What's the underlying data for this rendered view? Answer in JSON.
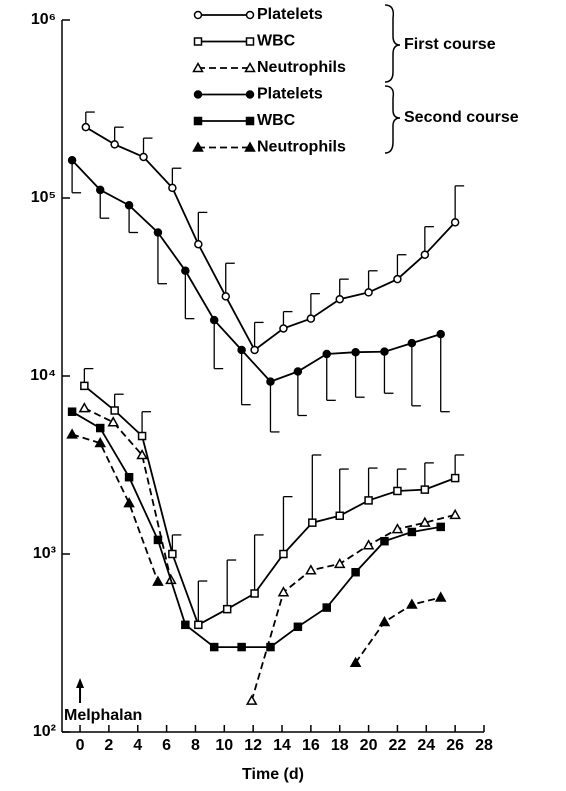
{
  "chart_data": {
    "type": "line",
    "log_y": true,
    "xlabel": "Time (d)",
    "xlim": [
      -1.25,
      28
    ],
    "xticks": [
      0,
      2,
      4,
      6,
      8,
      10,
      12,
      14,
      16,
      18,
      20,
      22,
      24,
      26,
      28
    ],
    "ylim": [
      100,
      1000000
    ],
    "yticks": [
      {
        "value": 100,
        "label": "10²"
      },
      {
        "value": 1000,
        "label": "10³"
      },
      {
        "value": 10000,
        "label": "10⁴"
      },
      {
        "value": 100000,
        "label": "10⁵"
      },
      {
        "value": 1000000,
        "label": "10⁶"
      }
    ],
    "group_labels": [
      "First course",
      "Second course"
    ],
    "annotation": {
      "text": "Melphalan",
      "x": 0
    },
    "series": [
      {
        "name": "Platelets",
        "color": "#000000",
        "marker": "circle",
        "filled": false,
        "dashed": false,
        "error_direction": "up",
        "x": [
          0.4,
          2.4,
          4.4,
          6.4,
          8.2,
          10.1,
          12.1,
          14.1,
          16,
          18,
          20,
          22,
          23.9,
          26
        ],
        "values": [
          250000,
          200000,
          170000,
          114000,
          55000,
          28000,
          14000,
          18500,
          21000,
          27000,
          29500,
          35000,
          48000,
          73000
        ],
        "errors": [
          54000,
          50000,
          47000,
          33000,
          28000,
          15000,
          6000,
          4500,
          8000,
          8000,
          9500,
          13000,
          21000,
          44000
        ]
      },
      {
        "name": "WBC",
        "color": "#000000",
        "marker": "square",
        "filled": false,
        "dashed": false,
        "error_direction": "up",
        "x": [
          0.3,
          2.4,
          4.3,
          6.4,
          8.2,
          10.2,
          12.1,
          14.1,
          16.1,
          18,
          20,
          22,
          23.9,
          26
        ],
        "values": [
          8800,
          6400,
          4600,
          1000,
          400,
          490,
          600,
          1000,
          1500,
          1640,
          2000,
          2260,
          2300,
          2670
        ],
        "errors": [
          2200,
          1500,
          1700,
          280,
          305,
          435,
          680,
          1100,
          2100,
          1360,
          1040,
          740,
          950,
          930
        ]
      },
      {
        "name": "Neutrophils",
        "color": "#000000",
        "marker": "triangle",
        "filled": false,
        "dashed": true,
        "x": [
          0.3,
          2.3,
          4.3,
          6.3,
          8.2,
          11.9,
          14.1,
          16,
          18,
          20,
          22,
          23.9,
          26
        ],
        "values": [
          6600,
          5500,
          3600,
          715,
          null,
          150,
          610,
          810,
          880,
          1120,
          1380,
          1500,
          1660
        ]
      },
      {
        "name": "Platelets",
        "color": "#000000",
        "marker": "circle",
        "filled": true,
        "dashed": false,
        "error_direction": "down",
        "x": [
          -0.55,
          1.4,
          3.4,
          5.4,
          7.3,
          9.3,
          11.2,
          13.2,
          15.1,
          17.1,
          19.1,
          21.1,
          23,
          25
        ],
        "values": [
          163000,
          111000,
          91000,
          64000,
          39000,
          20600,
          14000,
          9300,
          10600,
          13300,
          13600,
          13700,
          15300,
          17200
        ],
        "errors": [
          56000,
          34000,
          27000,
          31000,
          18000,
          9600,
          7100,
          4450,
          4600,
          6000,
          6000,
          5700,
          8500,
          10900
        ]
      },
      {
        "name": "WBC",
        "color": "#000000",
        "marker": "square",
        "filled": true,
        "dashed": false,
        "x": [
          -0.55,
          1.4,
          3.4,
          5.4,
          7.3,
          9.3,
          11.2,
          13.2,
          15.1,
          17.1,
          19.1,
          21.1,
          23,
          25
        ],
        "values": [
          6300,
          5100,
          2700,
          1200,
          400,
          300,
          300,
          300,
          390,
          500,
          790,
          1180,
          1330,
          1420
        ]
      },
      {
        "name": "Neutrophils",
        "color": "#000000",
        "marker": "triangle",
        "filled": true,
        "dashed": true,
        "x": [
          -0.55,
          1.4,
          3.4,
          5.4,
          7.3,
          19.1,
          21.1,
          23,
          25
        ],
        "values": [
          4700,
          4200,
          1930,
          700,
          null,
          245,
          415,
          520,
          570
        ]
      }
    ]
  }
}
